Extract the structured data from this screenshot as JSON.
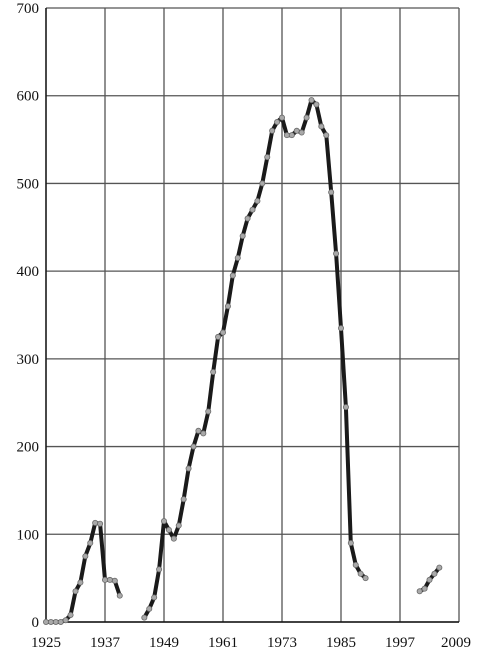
{
  "chart_data": {
    "type": "line",
    "title": "",
    "xlabel": "",
    "ylabel": "",
    "xlim": [
      1925,
      2009
    ],
    "ylim": [
      0,
      700
    ],
    "x_ticks": [
      "1925",
      "1937",
      "1949",
      "1961",
      "1973",
      "1985",
      "1997",
      "2009"
    ],
    "y_ticks": [
      "0",
      "100",
      "200",
      "300",
      "400",
      "500",
      "600",
      "700"
    ],
    "grid": true,
    "legend": "none",
    "line_color": "#1a1a1a",
    "marker_color": "#a9a9a9",
    "series": [
      {
        "values": [
          [
            1925,
            0
          ],
          [
            1926,
            0
          ],
          [
            1927,
            0
          ],
          [
            1928,
            0
          ],
          [
            1929,
            2
          ],
          [
            1930,
            8
          ],
          [
            1931,
            35
          ],
          [
            1932,
            45
          ],
          [
            1933,
            75
          ],
          [
            1934,
            90
          ],
          [
            1935,
            113
          ],
          [
            1936,
            112
          ],
          [
            1937,
            48
          ],
          [
            1938,
            48
          ],
          [
            1939,
            47
          ],
          [
            1940,
            30
          ]
        ]
      },
      {
        "values": [
          [
            1945,
            5
          ],
          [
            1946,
            15
          ],
          [
            1947,
            28
          ],
          [
            1948,
            60
          ],
          [
            1949,
            115
          ],
          [
            1950,
            105
          ],
          [
            1951,
            95
          ],
          [
            1952,
            110
          ],
          [
            1953,
            140
          ],
          [
            1954,
            175
          ],
          [
            1955,
            200
          ],
          [
            1956,
            218
          ],
          [
            1957,
            215
          ],
          [
            1958,
            240
          ],
          [
            1959,
            285
          ],
          [
            1960,
            325
          ],
          [
            1961,
            330
          ],
          [
            1962,
            360
          ],
          [
            1963,
            395
          ],
          [
            1964,
            415
          ],
          [
            1965,
            440
          ],
          [
            1966,
            460
          ],
          [
            1967,
            470
          ],
          [
            1968,
            480
          ],
          [
            1969,
            500
          ],
          [
            1970,
            530
          ],
          [
            1971,
            560
          ],
          [
            1972,
            570
          ],
          [
            1973,
            575
          ],
          [
            1974,
            555
          ],
          [
            1975,
            555
          ],
          [
            1976,
            560
          ],
          [
            1977,
            558
          ],
          [
            1978,
            575
          ],
          [
            1979,
            595
          ],
          [
            1980,
            590
          ],
          [
            1981,
            565
          ],
          [
            1982,
            555
          ],
          [
            1983,
            490
          ],
          [
            1984,
            420
          ],
          [
            1985,
            335
          ],
          [
            1986,
            245
          ],
          [
            1987,
            90
          ],
          [
            1988,
            65
          ],
          [
            1989,
            55
          ],
          [
            1990,
            50
          ]
        ]
      },
      {
        "values": [
          [
            2001,
            35
          ],
          [
            2002,
            38
          ],
          [
            2003,
            48
          ],
          [
            2004,
            55
          ],
          [
            2005,
            62
          ]
        ]
      }
    ]
  }
}
